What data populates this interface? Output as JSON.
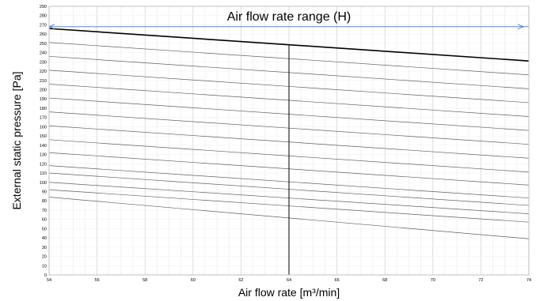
{
  "chart_data": {
    "type": "line",
    "xlabel": "Air flow rate [m³/min]",
    "ylabel": "External static pressure [Pa]",
    "xlim": [
      54,
      74
    ],
    "ylim": [
      0,
      290
    ],
    "x_ticks": [
      54,
      56,
      58,
      60,
      62,
      64,
      66,
      68,
      70,
      72,
      74
    ],
    "y_ticks": [
      0,
      10,
      20,
      30,
      40,
      50,
      60,
      70,
      80,
      90,
      100,
      110,
      120,
      130,
      140,
      150,
      160,
      170,
      180,
      190,
      200,
      210,
      220,
      230,
      240,
      250,
      260,
      270,
      280,
      290
    ],
    "grid": true,
    "colors": {
      "curve": "#000000",
      "thin_curve": "#606060",
      "arrow": "#4472c4",
      "grid": "#d9d9d9"
    },
    "annotations": [
      {
        "text": "Air flow rate range (H)",
        "type": "double-arrow",
        "x_start": 54,
        "x_end": 74,
        "y": 268
      },
      {
        "type": "vertical-line",
        "x": 64,
        "y_start": 0,
        "y_end": 249
      }
    ],
    "series": [
      {
        "style": "bold",
        "x": [
          54,
          74
        ],
        "y": [
          266,
          231
        ]
      },
      {
        "style": "thin",
        "x": [
          54,
          74
        ],
        "y": [
          251,
          216
        ]
      },
      {
        "style": "thin",
        "x": [
          54,
          74
        ],
        "y": [
          236,
          201
        ]
      },
      {
        "style": "thin",
        "x": [
          54,
          74
        ],
        "y": [
          221,
          186
        ]
      },
      {
        "style": "thin",
        "x": [
          54,
          74
        ],
        "y": [
          206,
          171
        ]
      },
      {
        "style": "thin",
        "x": [
          54,
          74
        ],
        "y": [
          191,
          156
        ]
      },
      {
        "style": "thin",
        "x": [
          54,
          74
        ],
        "y": [
          176,
          141
        ]
      },
      {
        "style": "thin",
        "x": [
          54,
          74
        ],
        "y": [
          161,
          126
        ]
      },
      {
        "style": "thin",
        "x": [
          54,
          74
        ],
        "y": [
          146,
          111
        ]
      },
      {
        "style": "thin",
        "x": [
          54,
          74
        ],
        "y": [
          132,
          97
        ]
      },
      {
        "style": "thin",
        "x": [
          54,
          74
        ],
        "y": [
          118,
          83
        ]
      },
      {
        "style": "thin",
        "x": [
          54,
          74
        ],
        "y": [
          110,
          75
        ]
      },
      {
        "style": "thin",
        "x": [
          54,
          74
        ],
        "y": [
          100,
          66
        ]
      },
      {
        "style": "thin",
        "x": [
          54,
          74
        ],
        "y": [
          92,
          57
        ]
      },
      {
        "style": "thin",
        "x": [
          54,
          74
        ],
        "y": [
          84,
          39
        ]
      }
    ]
  }
}
